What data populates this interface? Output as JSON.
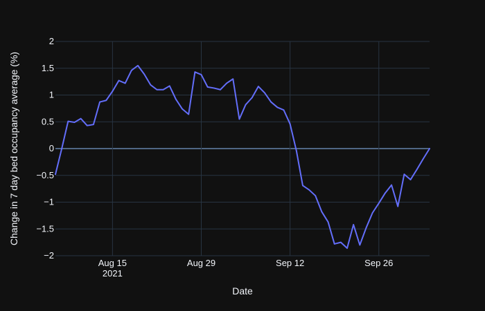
{
  "chart_data": {
    "type": "line",
    "title": "",
    "xlabel": "Date",
    "ylabel": "Change in 7 day bed occupancy average (%)",
    "x_start": "2021-08-06",
    "x_end": "2021-10-04",
    "xlim": [
      "2021-08-06",
      "2021-10-04"
    ],
    "ylim": [
      -2,
      2
    ],
    "y_ticks": [
      -2,
      -1.5,
      -1,
      -0.5,
      0,
      0.5,
      1,
      1.5,
      2
    ],
    "y_tick_labels": [
      "−2",
      "−1.5",
      "−1",
      "−0.5",
      "0",
      "0.5",
      "1",
      "1.5",
      "2"
    ],
    "x_ticks": [
      {
        "date": "2021-08-15",
        "label": "Aug 15",
        "sublabel": "2021"
      },
      {
        "date": "2021-08-29",
        "label": "Aug 29",
        "sublabel": ""
      },
      {
        "date": "2021-09-12",
        "label": "Sep 12",
        "sublabel": ""
      },
      {
        "date": "2021-09-26",
        "label": "Sep 26",
        "sublabel": ""
      }
    ],
    "grid": true,
    "line_color": "#636efa",
    "grid_color": "#283442",
    "zero_line_color": "#506784",
    "series": [
      {
        "x": [
          "2021-08-06",
          "2021-08-07",
          "2021-08-08",
          "2021-08-09",
          "2021-08-10",
          "2021-08-11",
          "2021-08-12",
          "2021-08-13",
          "2021-08-14",
          "2021-08-15",
          "2021-08-16",
          "2021-08-17",
          "2021-08-18",
          "2021-08-19",
          "2021-08-20",
          "2021-08-21",
          "2021-08-22",
          "2021-08-23",
          "2021-08-24",
          "2021-08-25",
          "2021-08-26",
          "2021-08-27",
          "2021-08-28",
          "2021-08-29",
          "2021-08-30",
          "2021-08-31",
          "2021-09-01",
          "2021-09-02",
          "2021-09-03",
          "2021-09-04",
          "2021-09-05",
          "2021-09-06",
          "2021-09-07",
          "2021-09-08",
          "2021-09-09",
          "2021-09-10",
          "2021-09-11",
          "2021-09-12",
          "2021-09-13",
          "2021-09-14",
          "2021-09-15",
          "2021-09-16",
          "2021-09-17",
          "2021-09-18",
          "2021-09-19",
          "2021-09-20",
          "2021-09-21",
          "2021-09-22",
          "2021-09-23",
          "2021-09-24",
          "2021-09-25",
          "2021-09-26",
          "2021-09-27",
          "2021-09-28",
          "2021-09-29",
          "2021-09-30",
          "2021-10-01",
          "2021-10-02",
          "2021-10-03",
          "2021-10-04"
        ],
        "y": [
          -0.48,
          0.0,
          0.51,
          0.49,
          0.56,
          0.43,
          0.45,
          0.87,
          0.9,
          1.07,
          1.27,
          1.22,
          1.46,
          1.55,
          1.39,
          1.19,
          1.1,
          1.1,
          1.17,
          0.92,
          0.74,
          0.64,
          1.43,
          1.38,
          1.15,
          1.13,
          1.1,
          1.22,
          1.3,
          0.55,
          0.82,
          0.95,
          1.16,
          1.04,
          0.87,
          0.77,
          0.72,
          0.46,
          -0.04,
          -0.69,
          -0.77,
          -0.88,
          -1.18,
          -1.37,
          -1.78,
          -1.75,
          -1.86,
          -1.42,
          -1.8,
          -1.48,
          -1.2,
          -1.02,
          -0.83,
          -0.68,
          -1.08,
          -0.48,
          -0.58,
          -0.39,
          -0.19,
          -0.0
        ]
      }
    ]
  }
}
